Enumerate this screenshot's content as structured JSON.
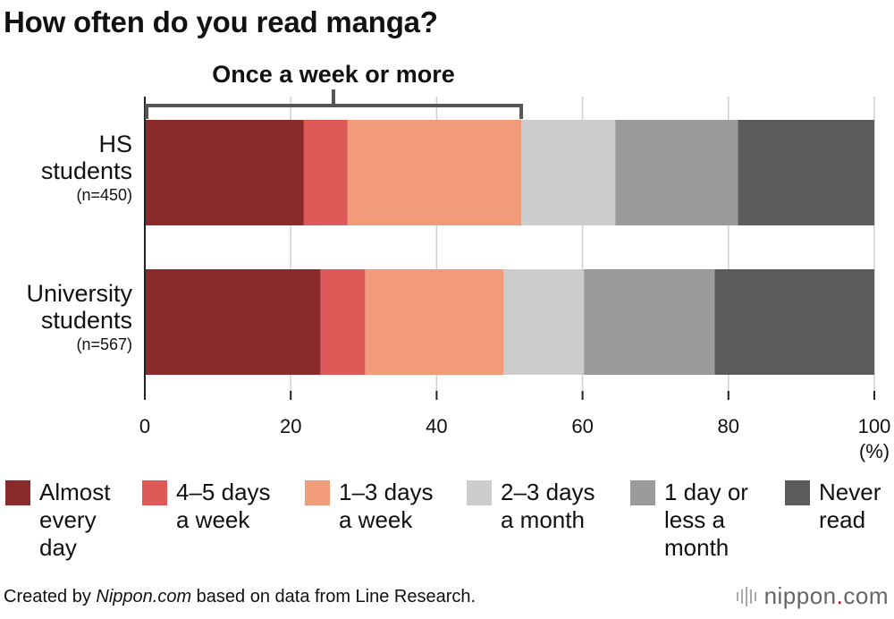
{
  "title": "How often do you read manga?",
  "chart_data": {
    "type": "bar",
    "orientation": "horizontal",
    "stacked": true,
    "title": "How often do you read manga?",
    "categories": [
      {
        "label": "HS students",
        "lines": [
          "HS",
          "students"
        ],
        "n": "(n=450)"
      },
      {
        "label": "University students",
        "lines": [
          "University",
          "students"
        ],
        "n": "(n=567)"
      }
    ],
    "series": [
      {
        "name": "Almost every day",
        "legend_lines": "Almost\nevery\nday",
        "color": "#8b2a2a",
        "values": [
          21.8,
          24.1
        ]
      },
      {
        "name": "4–5 days a week",
        "legend_lines": "4–5 days\na week",
        "color": "#dd5a58",
        "values": [
          6.0,
          6.1
        ]
      },
      {
        "name": "1–3 days a week",
        "legend_lines": "1–3 days\na week",
        "color": "#f29b7b",
        "values": [
          23.8,
          19.0
        ]
      },
      {
        "name": "2–3 days a month",
        "legend_lines": "2–3 days\na month",
        "color": "#cdcdcd",
        "values": [
          12.9,
          11.0
        ]
      },
      {
        "name": "1 day or less a month",
        "legend_lines": "1 day or\nless a\nmonth",
        "color": "#9b9b9b",
        "values": [
          16.8,
          17.9
        ]
      },
      {
        "name": "Never read",
        "legend_lines": "Never\nread",
        "color": "#5c5c5c",
        "values": [
          18.7,
          21.9
        ]
      }
    ],
    "xlim": [
      0,
      100
    ],
    "xticks": [
      0,
      20,
      40,
      60,
      80,
      100
    ],
    "xunit": "(%)",
    "grid": true,
    "annotation": {
      "label": "Once a week or more",
      "from": 0,
      "to": 51.6
    }
  },
  "footer": {
    "prefix": "Created by ",
    "source_italic": "Nippon.com",
    "suffix": " based on data from Line Research."
  },
  "logo": {
    "main": "nippon",
    "dot": ".",
    "tld": "com"
  },
  "colors": {
    "bracket": "#555555",
    "grid": "#d0d0d0",
    "axis": "#222222"
  }
}
